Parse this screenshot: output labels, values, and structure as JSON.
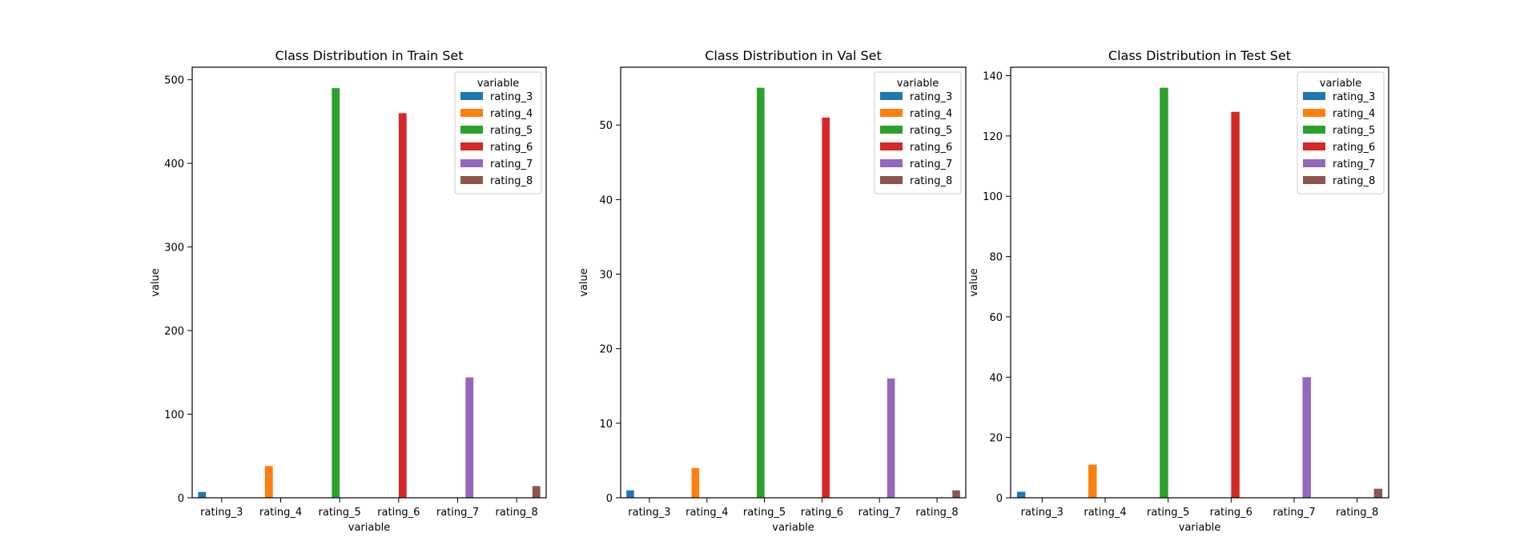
{
  "chart_data": [
    {
      "type": "bar",
      "title": "Class Distribution in Train Set",
      "xlabel": "variable",
      "ylabel": "value",
      "categories": [
        "rating_3",
        "rating_4",
        "rating_5",
        "rating_6",
        "rating_7",
        "rating_8"
      ],
      "values": [
        7,
        38,
        490,
        460,
        144,
        14
      ],
      "ylim": [
        0,
        515
      ],
      "yticks": [
        0,
        100,
        200,
        300,
        400,
        500
      ],
      "legend": {
        "title": "variable",
        "placement": "top-right"
      }
    },
    {
      "type": "bar",
      "title": "Class Distribution in Val Set",
      "xlabel": "variable",
      "ylabel": "value",
      "categories": [
        "rating_3",
        "rating_4",
        "rating_5",
        "rating_6",
        "rating_7",
        "rating_8"
      ],
      "values": [
        1,
        4,
        55,
        51,
        16,
        1
      ],
      "ylim": [
        0,
        57.75
      ],
      "yticks": [
        0,
        10,
        20,
        30,
        40,
        50
      ],
      "legend": {
        "title": "variable",
        "placement": "top-right"
      }
    },
    {
      "type": "bar",
      "title": "Class Distribution in Test Set",
      "xlabel": "variable",
      "ylabel": "value",
      "categories": [
        "rating_3",
        "rating_4",
        "rating_5",
        "rating_6",
        "rating_7",
        "rating_8"
      ],
      "values": [
        2,
        11,
        136,
        128,
        40,
        3
      ],
      "ylim": [
        0,
        142.8
      ],
      "yticks": [
        0,
        20,
        40,
        60,
        80,
        100,
        120,
        140
      ],
      "legend": {
        "title": "variable",
        "placement": "top-right"
      }
    }
  ],
  "colors": [
    "#1f77b4",
    "#ff7f0e",
    "#2ca02c",
    "#d62728",
    "#9467bd",
    "#8c564b"
  ]
}
